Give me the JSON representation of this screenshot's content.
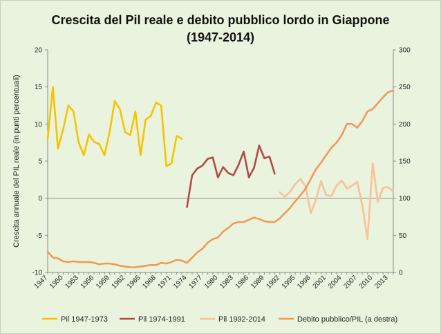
{
  "chart_data": {
    "type": "line",
    "title": "Crescita del Pil reale e debito pubblico lordo in Giappone",
    "subtitle": "(1947-2014)",
    "ylabel": "Crescita annuale del PIL reale (in punti percentuali)",
    "y2label": "",
    "xlim": [
      1947,
      2014
    ],
    "ylim": [
      -10,
      20
    ],
    "y2lim": [
      0,
      300
    ],
    "xticks": [
      1947,
      1950,
      1953,
      1956,
      1959,
      1962,
      1965,
      1968,
      1971,
      1974,
      1977,
      1980,
      1983,
      1986,
      1989,
      1992,
      1995,
      1998,
      2001,
      2004,
      2007,
      2010,
      2013
    ],
    "yticks": [
      -10,
      -5,
      0,
      5,
      10,
      15,
      20
    ],
    "y2ticks": [
      0,
      50,
      100,
      150,
      200,
      250,
      300
    ],
    "grid": false,
    "legend_position": "bottom",
    "series": [
      {
        "name": "Pil 1947-1973",
        "axis": "left",
        "color": "#f5c400",
        "x": [
          1947,
          1948,
          1949,
          1950,
          1951,
          1952,
          1953,
          1954,
          1955,
          1956,
          1957,
          1958,
          1959,
          1960,
          1961,
          1962,
          1963,
          1964,
          1965,
          1966,
          1967,
          1968,
          1969,
          1970,
          1971,
          1972,
          1973
        ],
        "values": [
          8.0,
          15.0,
          6.7,
          9.3,
          12.5,
          11.7,
          7.5,
          5.8,
          8.6,
          7.6,
          7.3,
          5.8,
          8.9,
          13.1,
          12.0,
          8.9,
          8.5,
          11.7,
          5.8,
          10.6,
          11.1,
          12.9,
          12.5,
          4.3,
          4.7,
          8.4,
          8.0
        ]
      },
      {
        "name": "Pil 1974-1991",
        "axis": "left",
        "color": "#b04a46",
        "x": [
          1974,
          1975,
          1976,
          1977,
          1978,
          1979,
          1980,
          1981,
          1982,
          1983,
          1984,
          1985,
          1986,
          1987,
          1988,
          1989,
          1990,
          1991
        ],
        "values": [
          -1.2,
          3.1,
          4.0,
          4.4,
          5.3,
          5.5,
          2.8,
          4.2,
          3.4,
          3.1,
          4.5,
          6.3,
          2.8,
          4.1,
          7.1,
          5.4,
          5.6,
          3.3
        ]
      },
      {
        "name": "Pil 1992-2014",
        "axis": "left",
        "color": "#f7c296",
        "x": [
          1992,
          1993,
          1994,
          1995,
          1996,
          1997,
          1998,
          1999,
          2000,
          2001,
          2002,
          2003,
          2004,
          2005,
          2006,
          2007,
          2008,
          2009,
          2010,
          2011,
          2012,
          2013,
          2014
        ],
        "values": [
          0.8,
          0.2,
          0.9,
          1.9,
          2.6,
          1.6,
          -2.0,
          -0.2,
          2.3,
          0.4,
          0.3,
          1.7,
          2.4,
          1.3,
          1.7,
          2.2,
          -1.0,
          -5.5,
          4.7,
          -0.5,
          1.4,
          1.5,
          0.9
        ]
      },
      {
        "name": "Debito pubblico/PIL (a destra)",
        "axis": "right",
        "color": "#f29a55",
        "x": [
          1947,
          1948,
          1949,
          1950,
          1951,
          1952,
          1953,
          1954,
          1955,
          1956,
          1957,
          1958,
          1959,
          1960,
          1961,
          1962,
          1963,
          1964,
          1965,
          1966,
          1967,
          1968,
          1969,
          1970,
          1971,
          1972,
          1973,
          1974,
          1975,
          1976,
          1977,
          1978,
          1979,
          1980,
          1981,
          1982,
          1983,
          1984,
          1985,
          1986,
          1987,
          1988,
          1989,
          1990,
          1991,
          1992,
          1993,
          1994,
          1995,
          1996,
          1997,
          1998,
          1999,
          2000,
          2001,
          2002,
          2003,
          2004,
          2005,
          2006,
          2007,
          2008,
          2009,
          2010,
          2011,
          2012,
          2013,
          2014
        ],
        "values": [
          28,
          20,
          19,
          15,
          14,
          15,
          14,
          14,
          14,
          13,
          11,
          12,
          12,
          11,
          9,
          8,
          7,
          7,
          8,
          9,
          10,
          10,
          13,
          12,
          14,
          17,
          16,
          13,
          20,
          27,
          32,
          40,
          45,
          47,
          55,
          60,
          66,
          68,
          68,
          71,
          74,
          72,
          69,
          68,
          68,
          73,
          80,
          87,
          96,
          104,
          113,
          126,
          139,
          148,
          158,
          168,
          175,
          185,
          200,
          200,
          195,
          204,
          217,
          220,
          228,
          236,
          243,
          245
        ]
      }
    ]
  }
}
